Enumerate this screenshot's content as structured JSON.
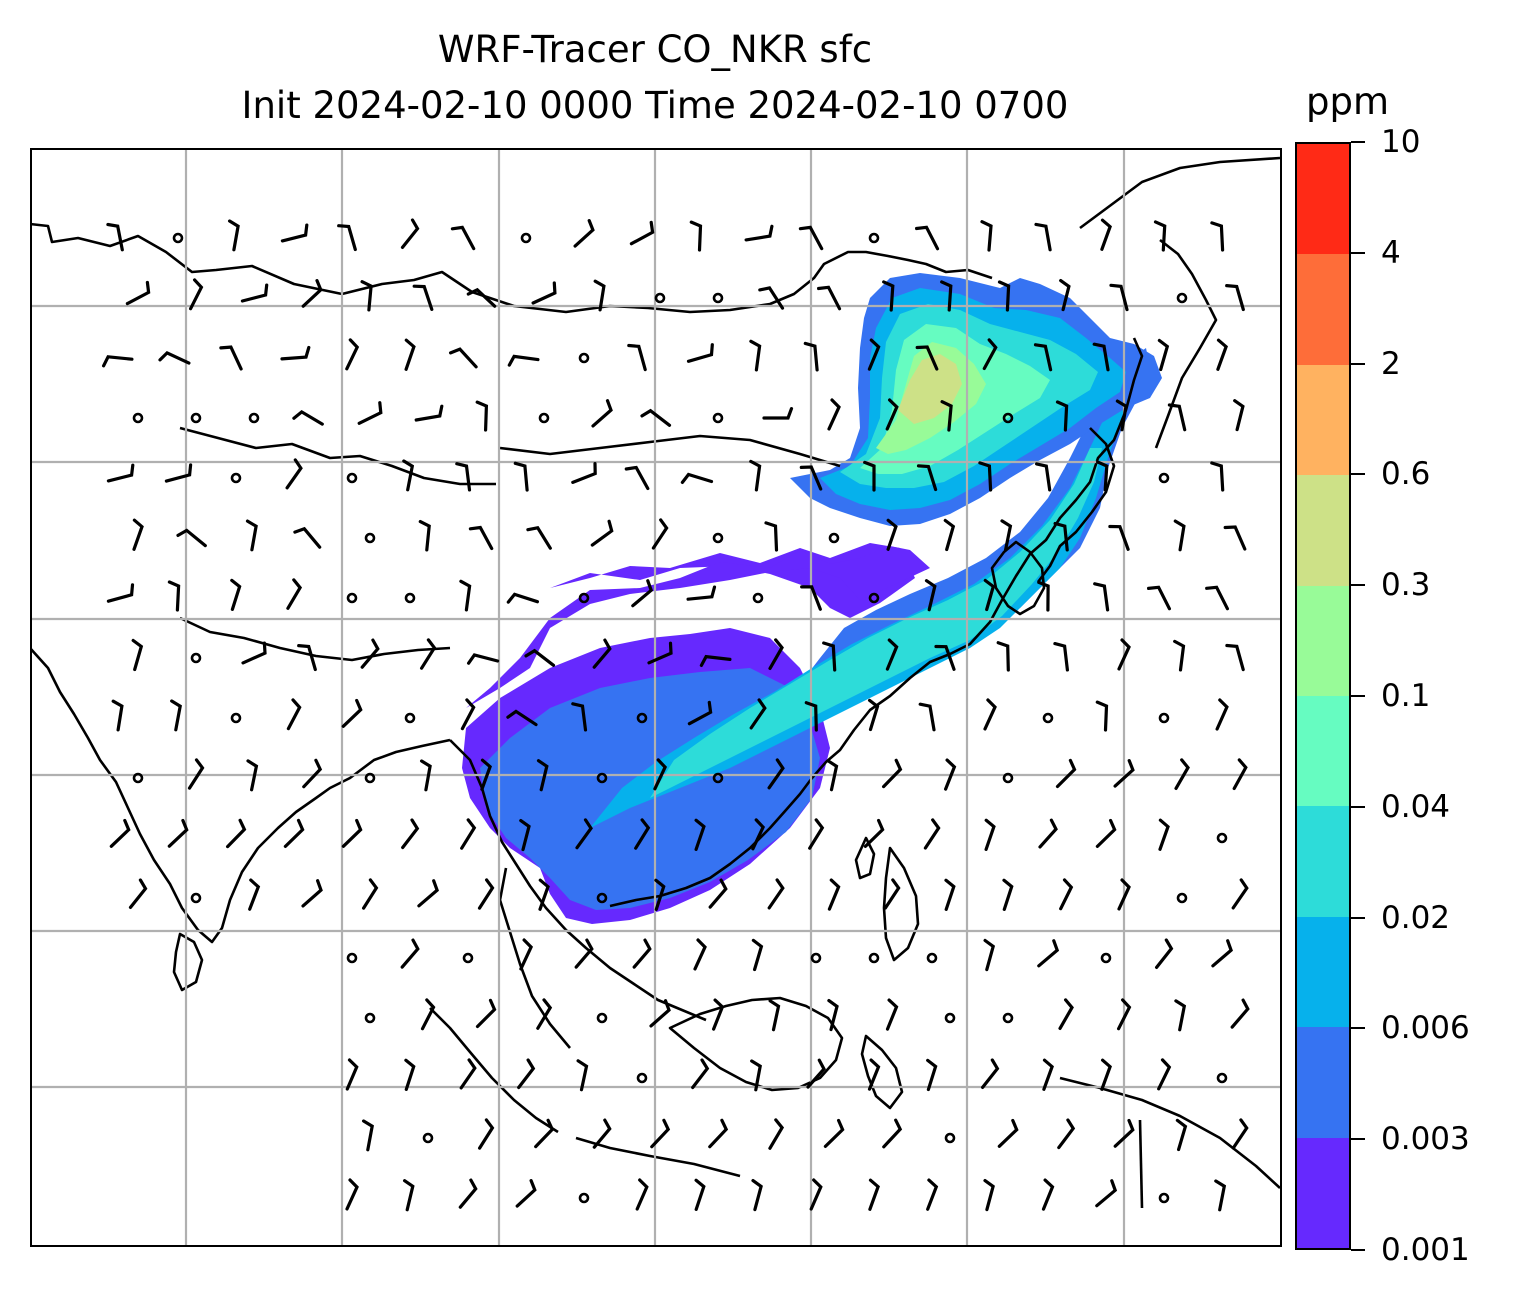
{
  "figure": {
    "title_line1": "WRF-Tracer CO_NKR sfc",
    "title_line2": "Init 2024-02-10 0000 Time 2024-02-10 0700"
  },
  "colorbar": {
    "unit_label": "ppm",
    "levels": [
      "0.001",
      "0.003",
      "0.006",
      "0.02",
      "0.04",
      "0.1",
      "0.3",
      "0.6",
      "2",
      "4",
      "10"
    ],
    "colors": [
      "#6629fe",
      "#3673f2",
      "#06b1ec",
      "#2ddcd9",
      "#66fcc1",
      "#98fb98",
      "#cde187",
      "#ffb260",
      "#fe6d39",
      "#ff2a16"
    ]
  },
  "map": {
    "field": "CO_NKR tracer concentration, surface",
    "gridline_color": "#b0b0b0",
    "coastline_color": "#000000",
    "wind_barb_color": "#000000"
  }
}
